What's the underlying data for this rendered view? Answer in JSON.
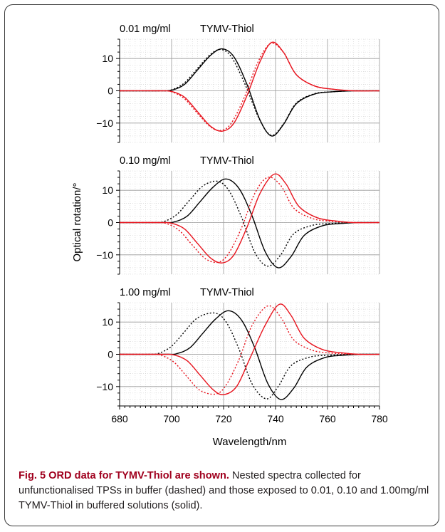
{
  "chart_data": [
    {
      "type": "line",
      "title": "0.01 mg/ml",
      "subtitle": "TYMV-Thiol",
      "xlabel": "Wavelength/nm",
      "ylabel": "Optical rotation/°",
      "xlim": [
        680,
        780
      ],
      "ylim": [
        -16,
        16
      ],
      "xticks": [
        680,
        700,
        720,
        740,
        760,
        780
      ],
      "yticks": [
        -10,
        0,
        10
      ],
      "grid": true,
      "series": [
        {
          "color": "#000000",
          "style": "solid",
          "x": [
            680,
            695,
            700,
            705,
            710,
            715,
            719.5,
            724,
            729,
            734,
            738.5,
            743,
            748,
            755,
            762,
            770,
            780
          ],
          "y": [
            0,
            0,
            0.2,
            2,
            6.5,
            11,
            13.0,
            10.5,
            2,
            -9,
            -14.0,
            -10.5,
            -4,
            -1,
            -0.3,
            0,
            0
          ]
        },
        {
          "color": "#000000",
          "style": "dashed",
          "x": [
            680,
            695,
            700,
            705,
            710,
            715,
            719.0,
            723,
            728,
            734,
            738.5,
            743,
            748,
            755,
            762,
            770,
            780
          ],
          "y": [
            0,
            0,
            0.3,
            2.5,
            7,
            11.3,
            12.8,
            10.5,
            2.5,
            -9.2,
            -13.8,
            -10.3,
            -3.8,
            -0.9,
            -0.3,
            0,
            0
          ]
        },
        {
          "color": "#e8141e",
          "style": "solid",
          "x": [
            680,
            695,
            700,
            705,
            710,
            715,
            719.5,
            724,
            729,
            734,
            738.5,
            743,
            748,
            755,
            762,
            770,
            780
          ],
          "y": [
            0,
            0,
            -0.2,
            -2,
            -6.5,
            -11,
            -12.5,
            -10,
            -1.5,
            9,
            15.0,
            12,
            5,
            1.5,
            0.5,
            0,
            0
          ]
        },
        {
          "color": "#e8141e",
          "style": "dashed",
          "x": [
            680,
            695,
            700,
            705,
            710,
            715,
            719.0,
            723,
            728,
            733,
            738.0,
            743,
            748,
            755,
            762,
            770,
            780
          ],
          "y": [
            0,
            0,
            -0.3,
            -2.5,
            -7,
            -11.2,
            -12.3,
            -10,
            -2,
            8.5,
            14.6,
            12,
            5,
            1.5,
            0.5,
            0,
            0
          ]
        }
      ]
    },
    {
      "type": "line",
      "title": "0.10 mg/ml",
      "subtitle": "TYMV-Thiol",
      "xlim": [
        680,
        780
      ],
      "ylim": [
        -16,
        16
      ],
      "xticks": [
        680,
        700,
        720,
        740,
        760,
        780
      ],
      "yticks": [
        -10,
        0,
        10
      ],
      "grid": true,
      "series": [
        {
          "color": "#000000",
          "style": "solid",
          "x": [
            680,
            697,
            701,
            706,
            711,
            716,
            721.0,
            726,
            731,
            736,
            741.0,
            746,
            751,
            758,
            765,
            772,
            780
          ],
          "y": [
            0,
            0,
            0.2,
            2,
            6.5,
            11,
            13.5,
            10.5,
            2,
            -9,
            -14.0,
            -10.5,
            -4,
            -1,
            -0.3,
            0,
            0
          ]
        },
        {
          "color": "#000000",
          "style": "dashed",
          "x": [
            680,
            693,
            697,
            702,
            707,
            712,
            717.5,
            722,
            727,
            732,
            737.0,
            742,
            747,
            754,
            761,
            770,
            780
          ],
          "y": [
            0,
            0,
            0.3,
            2.5,
            7,
            11.3,
            12.8,
            10,
            1.5,
            -9.2,
            -13.5,
            -10,
            -3.5,
            -0.9,
            -0.3,
            0,
            0
          ]
        },
        {
          "color": "#e8141e",
          "style": "solid",
          "x": [
            680,
            695,
            700,
            705,
            710,
            715,
            719.5,
            724,
            729,
            734,
            739.5,
            744,
            749,
            756,
            763,
            770,
            780
          ],
          "y": [
            0,
            0,
            -0.2,
            -2,
            -6.5,
            -11,
            -12.5,
            -10,
            -1.5,
            9,
            15.0,
            12,
            5,
            1.5,
            0.5,
            0,
            0
          ]
        },
        {
          "color": "#e8141e",
          "style": "dashed",
          "x": [
            680,
            693,
            698,
            703,
            708,
            713,
            718.0,
            722,
            727,
            732,
            737.0,
            742,
            747,
            754,
            761,
            770,
            780
          ],
          "y": [
            0,
            0,
            -0.3,
            -2.5,
            -7,
            -11.2,
            -12.3,
            -9.5,
            -1.5,
            9,
            14.0,
            11.5,
            4.5,
            1.3,
            0.4,
            0,
            0
          ]
        }
      ]
    },
    {
      "type": "line",
      "title": "1.00 mg/ml",
      "subtitle": "TYMV-Thiol",
      "xlim": [
        680,
        780
      ],
      "ylim": [
        -16,
        16
      ],
      "xticks": [
        680,
        700,
        720,
        740,
        760,
        780
      ],
      "yticks": [
        -10,
        0,
        10
      ],
      "grid": true,
      "series": [
        {
          "color": "#000000",
          "style": "solid",
          "x": [
            680,
            698,
            702,
            707,
            712,
            717,
            722.0,
            727,
            732,
            737,
            742.0,
            747,
            752,
            759,
            766,
            773,
            780
          ],
          "y": [
            0,
            0,
            0.2,
            2,
            6.5,
            11,
            13.5,
            10.5,
            2,
            -9,
            -14.0,
            -10.5,
            -4,
            -1,
            -0.3,
            0,
            0
          ]
        },
        {
          "color": "#000000",
          "style": "dashed",
          "x": [
            680,
            691,
            695,
            700,
            705,
            710,
            716.5,
            721,
            726,
            731,
            736.5,
            741,
            746,
            753,
            760,
            770,
            780
          ],
          "y": [
            0,
            0,
            0.3,
            2.5,
            7,
            11.3,
            12.8,
            10,
            1.5,
            -9.2,
            -13.8,
            -10,
            -3.5,
            -0.9,
            -0.3,
            0,
            0
          ]
        },
        {
          "color": "#e8141e",
          "style": "solid",
          "x": [
            680,
            696,
            701,
            706,
            711,
            716,
            720.0,
            725,
            730,
            736,
            741.5,
            746,
            751,
            758,
            765,
            772,
            780
          ],
          "y": [
            0,
            0,
            -0.2,
            -2,
            -6.5,
            -11,
            -12.5,
            -10,
            -1.5,
            9,
            15.5,
            12,
            5,
            1.5,
            0.5,
            0,
            0
          ]
        },
        {
          "color": "#e8141e",
          "style": "dashed",
          "x": [
            680,
            692,
            696,
            701,
            706,
            711,
            717.0,
            721,
            726,
            731,
            737.0,
            742,
            747,
            754,
            761,
            770,
            780
          ],
          "y": [
            0,
            0,
            -0.3,
            -2.5,
            -7,
            -11.2,
            -12.3,
            -9.5,
            -1.5,
            9,
            15.0,
            11.5,
            4.5,
            1.3,
            0.4,
            0,
            0
          ]
        }
      ]
    }
  ],
  "caption": {
    "label": "Fig. 5 ORD data for TYMV-Thiol are shown.",
    "text": " Nested spectra collected for unfunctionalised TPSs in buffer (dashed) and those exposed to 0.01, 0.10 and 1.00mg/ml TYMV-Thiol in buffered solutions (solid)."
  }
}
